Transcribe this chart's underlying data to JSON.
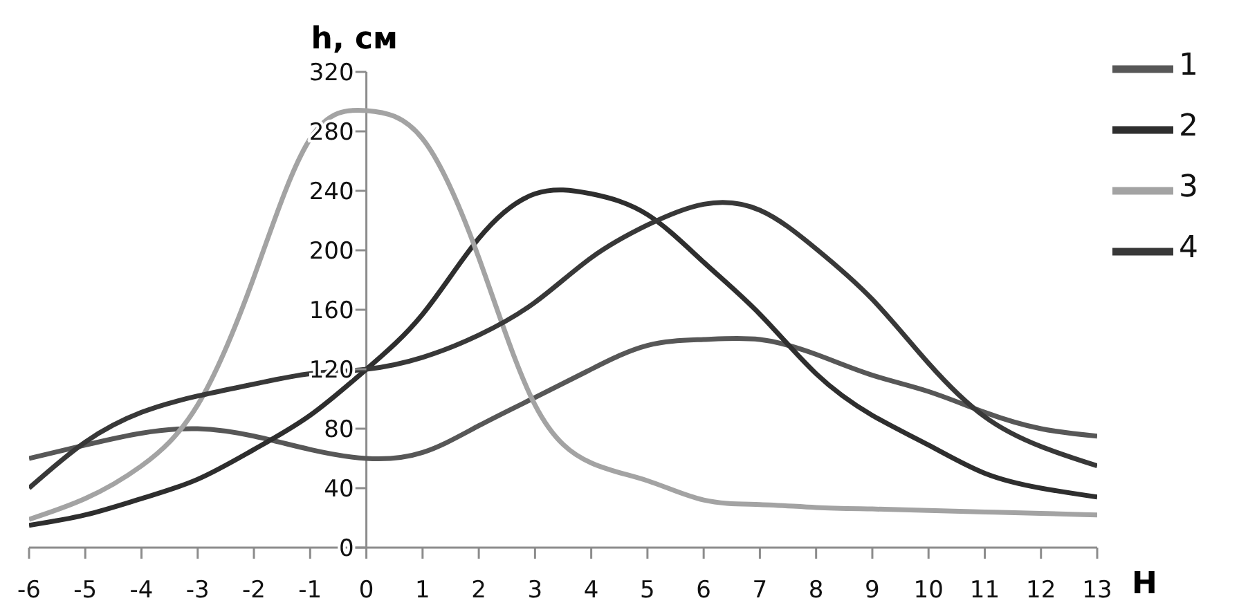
{
  "chart_data": {
    "type": "line",
    "xlabel": "H",
    "ylabel": "h, см",
    "x": [
      -6,
      -5,
      -4,
      -3,
      -2,
      -1,
      0,
      1,
      2,
      3,
      4,
      5,
      6,
      7,
      8,
      9,
      10,
      11,
      12,
      13
    ],
    "series": [
      {
        "name": "1",
        "color": "#575757",
        "values": [
          60,
          69,
          77,
          80,
          75,
          66,
          60,
          64,
          82,
          101,
          120,
          136,
          140,
          140,
          130,
          116,
          105,
          91,
          80,
          75
        ]
      },
      {
        "name": "2",
        "color": "#2e2e2e",
        "values": [
          15,
          22,
          33,
          46,
          66,
          89,
          120,
          157,
          208,
          238,
          238,
          224,
          192,
          157,
          117,
          89,
          69,
          50,
          40,
          34
        ]
      },
      {
        "name": "3",
        "color": "#a3a3a3",
        "values": [
          19,
          33,
          55,
          96,
          182,
          275,
          294,
          275,
          195,
          96,
          57,
          45,
          32,
          29,
          27,
          26,
          25,
          24,
          23,
          22
        ]
      },
      {
        "name": "4",
        "color": "#383838",
        "values": [
          40,
          71,
          91,
          102,
          110,
          117,
          120,
          128,
          143,
          165,
          195,
          217,
          231,
          227,
          201,
          167,
          124,
          88,
          68,
          55
        ]
      }
    ],
    "xlim": [
      -6,
      13
    ],
    "xticks": [
      -6,
      -5,
      -4,
      -3,
      -2,
      -1,
      0,
      1,
      2,
      3,
      4,
      5,
      6,
      7,
      8,
      9,
      10,
      11,
      12,
      13
    ],
    "ylim": [
      0,
      320
    ],
    "yticks": [
      0,
      40,
      80,
      120,
      160,
      200,
      240,
      280,
      320
    ],
    "grid": false,
    "legend": "right",
    "marker": "none",
    "line_style": "solid"
  }
}
